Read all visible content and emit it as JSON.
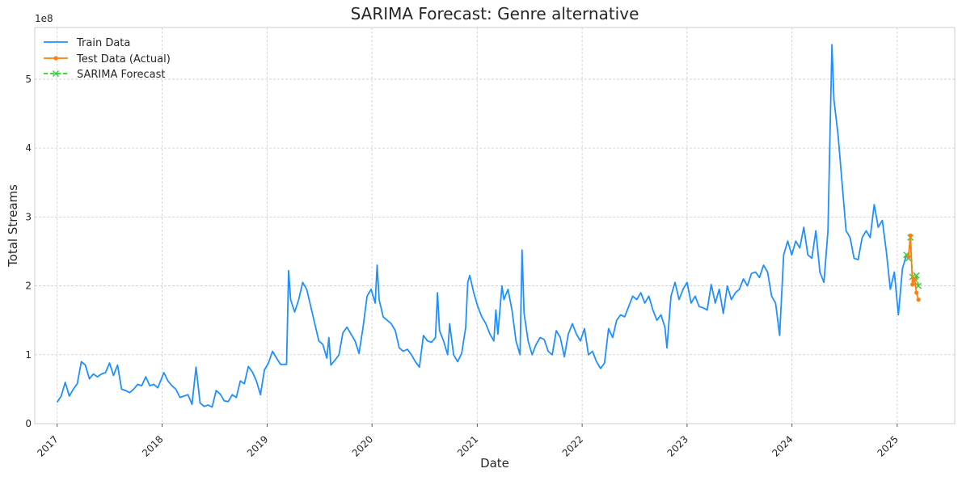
{
  "chart_data": {
    "type": "line",
    "title": "SARIMA Forecast: Genre alternative",
    "xlabel": "Date",
    "ylabel": "Total Streams",
    "y_scale_label": "1e8",
    "xlim": [
      "2016-10-15",
      "2025-07-20"
    ],
    "ylim": [
      0,
      5.75
    ],
    "x_ticks": [
      "2017",
      "2018",
      "2019",
      "2020",
      "2021",
      "2022",
      "2023",
      "2024",
      "2025"
    ],
    "y_ticks": [
      "0",
      "1",
      "2",
      "3",
      "4",
      "5"
    ],
    "grid": true,
    "legend_position": "top-left",
    "colors": {
      "train": "#1e90ff",
      "test": "#ff7f0e",
      "forecast": "#32cd32"
    },
    "series": [
      {
        "name": "Train Data",
        "style": "solid",
        "points": [
          [
            "2017-01-01",
            0.31
          ],
          [
            "2017-01-15",
            0.4
          ],
          [
            "2017-01-29",
            0.6
          ],
          [
            "2017-02-12",
            0.4
          ],
          [
            "2017-02-26",
            0.5
          ],
          [
            "2017-03-12",
            0.58
          ],
          [
            "2017-03-26",
            0.9
          ],
          [
            "2017-04-09",
            0.85
          ],
          [
            "2017-04-23",
            0.65
          ],
          [
            "2017-05-07",
            0.72
          ],
          [
            "2017-05-21",
            0.68
          ],
          [
            "2017-06-04",
            0.72
          ],
          [
            "2017-06-18",
            0.74
          ],
          [
            "2017-07-02",
            0.88
          ],
          [
            "2017-07-16",
            0.7
          ],
          [
            "2017-07-30",
            0.85
          ],
          [
            "2017-08-13",
            0.5
          ],
          [
            "2017-08-27",
            0.48
          ],
          [
            "2017-09-10",
            0.45
          ],
          [
            "2017-09-24",
            0.5
          ],
          [
            "2017-10-08",
            0.57
          ],
          [
            "2017-10-22",
            0.55
          ],
          [
            "2017-11-05",
            0.68
          ],
          [
            "2017-11-19",
            0.55
          ],
          [
            "2017-12-03",
            0.57
          ],
          [
            "2017-12-17",
            0.52
          ],
          [
            "2018-01-07",
            0.74
          ],
          [
            "2018-01-21",
            0.62
          ],
          [
            "2018-02-04",
            0.55
          ],
          [
            "2018-02-18",
            0.5
          ],
          [
            "2018-03-04",
            0.38
          ],
          [
            "2018-03-18",
            0.4
          ],
          [
            "2018-04-01",
            0.42
          ],
          [
            "2018-04-15",
            0.28
          ],
          [
            "2018-04-29",
            0.82
          ],
          [
            "2018-05-13",
            0.3
          ],
          [
            "2018-05-27",
            0.25
          ],
          [
            "2018-06-10",
            0.27
          ],
          [
            "2018-06-24",
            0.24
          ],
          [
            "2018-07-08",
            0.48
          ],
          [
            "2018-07-22",
            0.43
          ],
          [
            "2018-08-05",
            0.33
          ],
          [
            "2018-08-19",
            0.32
          ],
          [
            "2018-09-02",
            0.42
          ],
          [
            "2018-09-16",
            0.38
          ],
          [
            "2018-09-30",
            0.62
          ],
          [
            "2018-10-14",
            0.58
          ],
          [
            "2018-10-28",
            0.83
          ],
          [
            "2018-11-11",
            0.75
          ],
          [
            "2018-11-25",
            0.62
          ],
          [
            "2018-12-09",
            0.42
          ],
          [
            "2018-12-23",
            0.78
          ],
          [
            "2019-01-06",
            0.88
          ],
          [
            "2019-01-20",
            1.05
          ],
          [
            "2019-02-03",
            0.95
          ],
          [
            "2019-02-17",
            0.86
          ],
          [
            "2019-03-10",
            0.86
          ],
          [
            "2019-03-17",
            2.22
          ],
          [
            "2019-03-24",
            1.8
          ],
          [
            "2019-04-07",
            1.62
          ],
          [
            "2019-04-21",
            1.8
          ],
          [
            "2019-05-05",
            2.05
          ],
          [
            "2019-05-19",
            1.95
          ],
          [
            "2019-06-02",
            1.7
          ],
          [
            "2019-06-16",
            1.45
          ],
          [
            "2019-06-30",
            1.2
          ],
          [
            "2019-07-14",
            1.15
          ],
          [
            "2019-07-28",
            0.95
          ],
          [
            "2019-08-04",
            1.25
          ],
          [
            "2019-08-11",
            0.85
          ],
          [
            "2019-08-25",
            0.92
          ],
          [
            "2019-09-08",
            1.0
          ],
          [
            "2019-09-22",
            1.32
          ],
          [
            "2019-10-06",
            1.4
          ],
          [
            "2019-10-20",
            1.3
          ],
          [
            "2019-11-03",
            1.2
          ],
          [
            "2019-11-17",
            1.02
          ],
          [
            "2019-12-01",
            1.4
          ],
          [
            "2019-12-15",
            1.85
          ],
          [
            "2019-12-29",
            1.95
          ],
          [
            "2020-01-12",
            1.75
          ],
          [
            "2020-01-19",
            2.3
          ],
          [
            "2020-01-26",
            1.8
          ],
          [
            "2020-02-09",
            1.55
          ],
          [
            "2020-02-23",
            1.5
          ],
          [
            "2020-03-08",
            1.45
          ],
          [
            "2020-03-22",
            1.35
          ],
          [
            "2020-04-05",
            1.1
          ],
          [
            "2020-04-19",
            1.05
          ],
          [
            "2020-05-03",
            1.08
          ],
          [
            "2020-05-17",
            1.0
          ],
          [
            "2020-05-31",
            0.9
          ],
          [
            "2020-06-14",
            0.82
          ],
          [
            "2020-06-28",
            1.28
          ],
          [
            "2020-07-12",
            1.2
          ],
          [
            "2020-07-26",
            1.18
          ],
          [
            "2020-08-09",
            1.25
          ],
          [
            "2020-08-16",
            1.9
          ],
          [
            "2020-08-23",
            1.35
          ],
          [
            "2020-09-06",
            1.2
          ],
          [
            "2020-09-20",
            1.0
          ],
          [
            "2020-09-27",
            1.45
          ],
          [
            "2020-10-11",
            1.0
          ],
          [
            "2020-10-25",
            0.9
          ],
          [
            "2020-11-08",
            1.02
          ],
          [
            "2020-11-22",
            1.4
          ],
          [
            "2020-11-29",
            2.05
          ],
          [
            "2020-12-06",
            2.15
          ],
          [
            "2020-12-20",
            1.9
          ],
          [
            "2021-01-03",
            1.7
          ],
          [
            "2021-01-17",
            1.55
          ],
          [
            "2021-01-31",
            1.45
          ],
          [
            "2021-02-14",
            1.3
          ],
          [
            "2021-02-28",
            1.2
          ],
          [
            "2021-03-07",
            1.65
          ],
          [
            "2021-03-14",
            1.3
          ],
          [
            "2021-03-28",
            2.0
          ],
          [
            "2021-04-04",
            1.8
          ],
          [
            "2021-04-18",
            1.95
          ],
          [
            "2021-05-02",
            1.65
          ],
          [
            "2021-05-16",
            1.2
          ],
          [
            "2021-05-30",
            1.0
          ],
          [
            "2021-06-06",
            2.52
          ],
          [
            "2021-06-13",
            1.6
          ],
          [
            "2021-06-27",
            1.2
          ],
          [
            "2021-07-11",
            1.0
          ],
          [
            "2021-07-25",
            1.15
          ],
          [
            "2021-08-08",
            1.25
          ],
          [
            "2021-08-22",
            1.22
          ],
          [
            "2021-09-05",
            1.05
          ],
          [
            "2021-09-19",
            1.0
          ],
          [
            "2021-10-03",
            1.35
          ],
          [
            "2021-10-17",
            1.25
          ],
          [
            "2021-10-31",
            0.97
          ],
          [
            "2021-11-14",
            1.3
          ],
          [
            "2021-11-28",
            1.45
          ],
          [
            "2021-12-12",
            1.3
          ],
          [
            "2021-12-26",
            1.2
          ],
          [
            "2022-01-09",
            1.38
          ],
          [
            "2022-01-23",
            1.0
          ],
          [
            "2022-02-06",
            1.05
          ],
          [
            "2022-02-20",
            0.9
          ],
          [
            "2022-03-06",
            0.8
          ],
          [
            "2022-03-20",
            0.88
          ],
          [
            "2022-04-03",
            1.38
          ],
          [
            "2022-04-17",
            1.25
          ],
          [
            "2022-05-01",
            1.5
          ],
          [
            "2022-05-15",
            1.58
          ],
          [
            "2022-05-29",
            1.55
          ],
          [
            "2022-06-12",
            1.7
          ],
          [
            "2022-06-26",
            1.85
          ],
          [
            "2022-07-10",
            1.8
          ],
          [
            "2022-07-24",
            1.9
          ],
          [
            "2022-08-07",
            1.75
          ],
          [
            "2022-08-21",
            1.85
          ],
          [
            "2022-09-04",
            1.65
          ],
          [
            "2022-09-18",
            1.5
          ],
          [
            "2022-10-02",
            1.58
          ],
          [
            "2022-10-16",
            1.4
          ],
          [
            "2022-10-23",
            1.1
          ],
          [
            "2022-11-06",
            1.85
          ],
          [
            "2022-11-20",
            2.05
          ],
          [
            "2022-12-04",
            1.8
          ],
          [
            "2022-12-18",
            1.95
          ],
          [
            "2023-01-01",
            2.05
          ],
          [
            "2023-01-15",
            1.75
          ],
          [
            "2023-01-29",
            1.85
          ],
          [
            "2023-02-12",
            1.7
          ],
          [
            "2023-02-26",
            1.68
          ],
          [
            "2023-03-12",
            1.65
          ],
          [
            "2023-03-26",
            2.02
          ],
          [
            "2023-04-09",
            1.75
          ],
          [
            "2023-04-23",
            1.95
          ],
          [
            "2023-05-07",
            1.6
          ],
          [
            "2023-05-21",
            2.0
          ],
          [
            "2023-06-04",
            1.8
          ],
          [
            "2023-06-18",
            1.9
          ],
          [
            "2023-07-02",
            1.95
          ],
          [
            "2023-07-16",
            2.1
          ],
          [
            "2023-07-30",
            2.0
          ],
          [
            "2023-08-13",
            2.18
          ],
          [
            "2023-08-27",
            2.2
          ],
          [
            "2023-09-10",
            2.12
          ],
          [
            "2023-09-24",
            2.3
          ],
          [
            "2023-10-08",
            2.2
          ],
          [
            "2023-10-22",
            1.85
          ],
          [
            "2023-11-05",
            1.75
          ],
          [
            "2023-11-19",
            1.28
          ],
          [
            "2023-12-03",
            2.45
          ],
          [
            "2023-12-17",
            2.65
          ],
          [
            "2023-12-31",
            2.45
          ],
          [
            "2024-01-14",
            2.65
          ],
          [
            "2024-01-28",
            2.55
          ],
          [
            "2024-02-11",
            2.85
          ],
          [
            "2024-02-25",
            2.45
          ],
          [
            "2024-03-10",
            2.4
          ],
          [
            "2024-03-24",
            2.8
          ],
          [
            "2024-04-07",
            2.2
          ],
          [
            "2024-04-21",
            2.05
          ],
          [
            "2024-05-05",
            2.8
          ],
          [
            "2024-05-19",
            5.5
          ],
          [
            "2024-05-26",
            4.7
          ],
          [
            "2024-06-09",
            4.2
          ],
          [
            "2024-06-23",
            3.5
          ],
          [
            "2024-07-07",
            2.8
          ],
          [
            "2024-07-21",
            2.7
          ],
          [
            "2024-08-04",
            2.4
          ],
          [
            "2024-08-18",
            2.38
          ],
          [
            "2024-09-01",
            2.7
          ],
          [
            "2024-09-15",
            2.8
          ],
          [
            "2024-09-29",
            2.7
          ],
          [
            "2024-10-13",
            3.18
          ],
          [
            "2024-10-27",
            2.85
          ],
          [
            "2024-11-10",
            2.95
          ],
          [
            "2024-11-24",
            2.5
          ],
          [
            "2024-12-08",
            1.95
          ],
          [
            "2024-12-22",
            2.2
          ],
          [
            "2025-01-05",
            1.58
          ],
          [
            "2025-01-19",
            2.25
          ],
          [
            "2025-02-02",
            2.45
          ]
        ]
      },
      {
        "name": "Test Data (Actual)",
        "style": "solid-markers",
        "points": [
          [
            "2025-02-09",
            2.42
          ],
          [
            "2025-02-16",
            2.73
          ],
          [
            "2025-02-23",
            2.02
          ],
          [
            "2025-03-02",
            2.1
          ],
          [
            "2025-03-09",
            1.9
          ],
          [
            "2025-03-16",
            1.8
          ]
        ]
      },
      {
        "name": "SARIMA Forecast",
        "style": "dashed-x",
        "points": [
          [
            "2025-02-02",
            2.45
          ],
          [
            "2025-02-09",
            2.4
          ],
          [
            "2025-02-16",
            2.7
          ],
          [
            "2025-02-23",
            2.13
          ],
          [
            "2025-03-02",
            2.1
          ],
          [
            "2025-03-09",
            2.15
          ],
          [
            "2025-03-16",
            2.0
          ]
        ]
      }
    ]
  }
}
